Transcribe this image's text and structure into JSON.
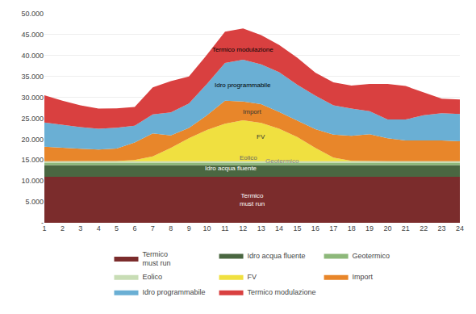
{
  "chart_data": {
    "type": "area",
    "stacked": true,
    "x": [
      1,
      2,
      3,
      4,
      5,
      6,
      7,
      8,
      9,
      10,
      11,
      12,
      13,
      14,
      15,
      16,
      17,
      18,
      19,
      20,
      21,
      22,
      23,
      24
    ],
    "series": [
      {
        "name": "Termico\nmust run",
        "color": "#7b2c2c",
        "values": [
          11000,
          11000,
          11000,
          11000,
          11000,
          11000,
          11000,
          11000,
          11000,
          11000,
          11000,
          11000,
          11000,
          11000,
          11000,
          11000,
          11000,
          11000,
          11000,
          11000,
          11000,
          11000,
          11000,
          11000
        ]
      },
      {
        "name": "Idro acqua fluente",
        "color": "#4a6741",
        "values": [
          2800,
          2800,
          2800,
          2800,
          2800,
          2800,
          2800,
          2800,
          2800,
          2800,
          2800,
          2800,
          2800,
          2800,
          2800,
          2800,
          2800,
          2800,
          2800,
          2800,
          2800,
          2800,
          2800,
          2800
        ]
      },
      {
        "name": "Geotermico",
        "color": "#8db87a",
        "values": [
          500,
          500,
          500,
          500,
          500,
          500,
          500,
          500,
          500,
          500,
          500,
          500,
          500,
          500,
          500,
          500,
          500,
          500,
          500,
          500,
          500,
          500,
          500,
          500
        ]
      },
      {
        "name": "Eolico",
        "color": "#c8ddb5",
        "values": [
          400,
          400,
          400,
          400,
          400,
          400,
          400,
          400,
          400,
          400,
          400,
          400,
          400,
          400,
          400,
          400,
          400,
          400,
          400,
          400,
          400,
          400,
          400,
          400
        ]
      },
      {
        "name": "FV",
        "color": "#f0e040",
        "values": [
          0,
          0,
          0,
          0,
          50,
          300,
          1200,
          3200,
          5500,
          7500,
          9000,
          9800,
          9200,
          7800,
          5800,
          3200,
          900,
          100,
          0,
          0,
          0,
          0,
          0,
          0
        ]
      },
      {
        "name": "Import",
        "color": "#e8862a",
        "values": [
          3500,
          3200,
          3000,
          2800,
          3000,
          4200,
          5500,
          3000,
          2500,
          3500,
          5500,
          4500,
          4500,
          4000,
          4000,
          4500,
          5500,
          6000,
          6500,
          5500,
          5000,
          5000,
          5000,
          4800
        ]
      },
      {
        "name": "Idro programmabile",
        "color": "#6aafd4",
        "values": [
          5800,
          5500,
          5200,
          5000,
          5000,
          4000,
          4500,
          5500,
          5800,
          7500,
          9000,
          10000,
          9500,
          9500,
          8500,
          8000,
          7000,
          6500,
          5500,
          4500,
          5000,
          6000,
          6500,
          6500
        ]
      },
      {
        "name": "Termico modulazione",
        "color": "#d94040",
        "values": [
          6500,
          5800,
          5200,
          4800,
          4600,
          4500,
          6500,
          7500,
          6500,
          7000,
          7500,
          7500,
          7000,
          6500,
          6500,
          5500,
          5500,
          5500,
          6500,
          8500,
          8000,
          5500,
          3500,
          3500
        ]
      }
    ],
    "xlim": [
      1,
      24
    ],
    "xticks": [
      1,
      2,
      3,
      4,
      5,
      6,
      7,
      8,
      9,
      10,
      11,
      12,
      13,
      14,
      15,
      16,
      17,
      18,
      19,
      20,
      21,
      22,
      23,
      24
    ],
    "ylim": [
      0,
      50000
    ],
    "yticks": [
      {
        "value": 0,
        "label": "-"
      },
      {
        "value": 5000,
        "label": "5.000"
      },
      {
        "value": 10000,
        "label": "10.000"
      },
      {
        "value": 15000,
        "label": "15.000"
      },
      {
        "value": 20000,
        "label": "20.000"
      },
      {
        "value": 25000,
        "label": "25.000"
      },
      {
        "value": 30000,
        "label": "30.000"
      },
      {
        "value": 35000,
        "label": "35.000"
      },
      {
        "value": 40000,
        "label": "40.000"
      },
      {
        "value": 45000,
        "label": "45.000"
      },
      {
        "value": 50000,
        "label": "50.000"
      }
    ],
    "grid": true,
    "legend": "bottom",
    "annotations": [
      {
        "text": "Termico\nmust run",
        "x": 12.5,
        "y": 5500,
        "color": "white"
      },
      {
        "text": "Idro acqua fluente",
        "x": 13,
        "y": 13000,
        "color": "white"
      },
      {
        "text": "Geotermico",
        "x": 13,
        "y": 14700,
        "color": "#888888"
      },
      {
        "text": "Eolico",
        "x": 13,
        "y": 15600,
        "color": "#666666"
      },
      {
        "text": "FV",
        "x": 13,
        "y": 20500,
        "color": "#333333"
      },
      {
        "text": "Import",
        "x": 12.5,
        "y": 26500,
        "color": "#333333"
      },
      {
        "text": "Idro programmabile",
        "x": 12,
        "y": 33000,
        "color": "black"
      },
      {
        "text": "Termico modulazione",
        "x": 12,
        "y": 41500,
        "color": "black"
      }
    ]
  }
}
